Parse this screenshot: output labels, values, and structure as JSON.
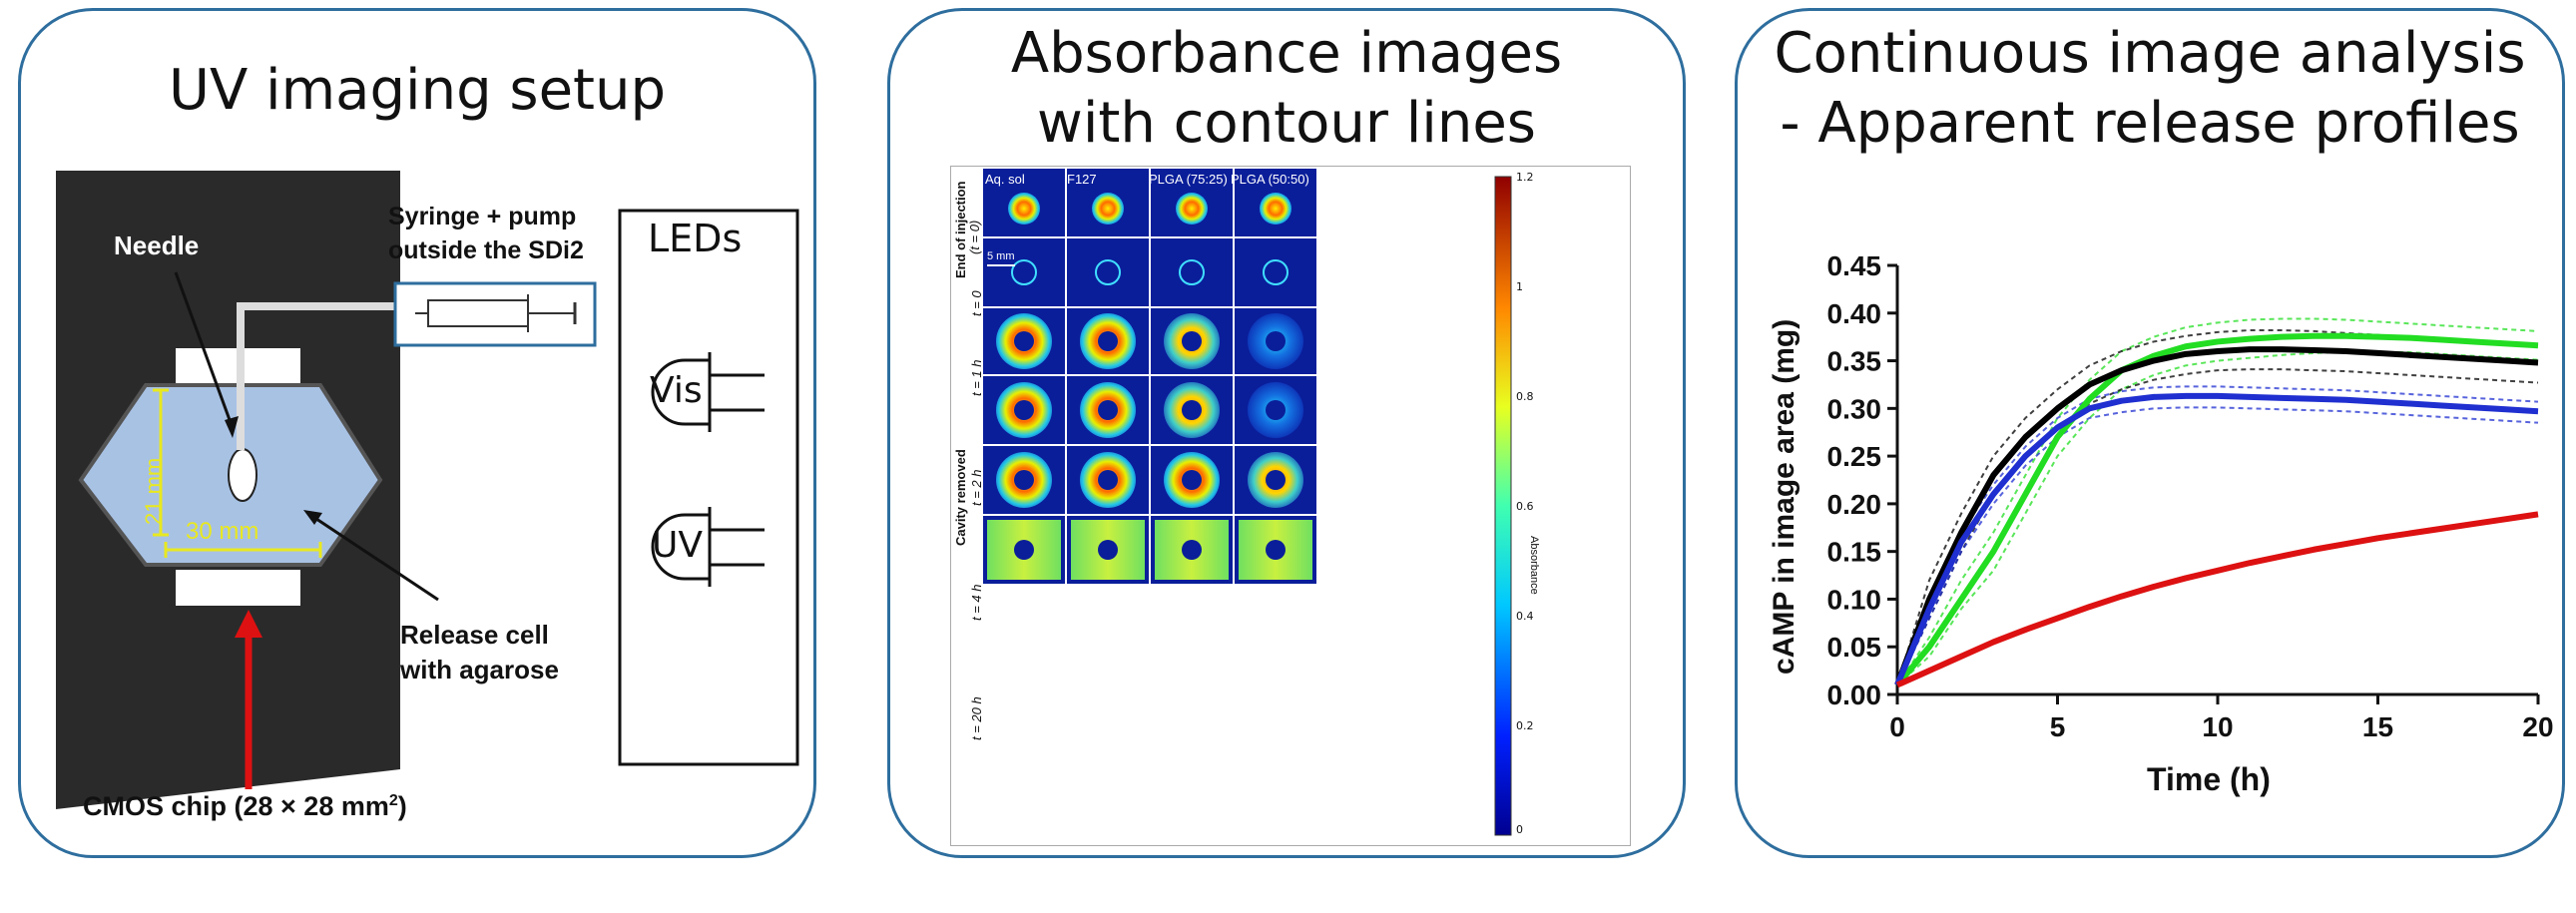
{
  "colors": {
    "panel_border": "#2e6e9e",
    "series_green": "#22dd22",
    "series_black": "#000000",
    "series_blue": "#1f2fd0",
    "series_red": "#dd1111",
    "cmos_arrow": "#dd1111"
  },
  "panel1": {
    "title": "UV imaging setup",
    "needle_label": "Needle",
    "syringe_label_1": "Syringe + pump",
    "syringe_label_2": "outside the SDi2",
    "leds_label": "LEDs",
    "vis_label": "Vis",
    "uv_label": "UV",
    "dim_21": "21 mm",
    "dim_30": "30 mm",
    "release_label_1": "Release cell",
    "release_label_2": "with agarose",
    "cmos_label": "CMOS chip (28 × 28 mm",
    "cmos_sup": "2",
    "cmos_close": ")"
  },
  "panel2": {
    "title_1": "Absorbance images",
    "title_2": "with contour lines",
    "columns": [
      "Aq. sol",
      "F127",
      "PLGA (75:25)",
      "PLGA (50:50)"
    ],
    "row_labels": [
      "t = 0",
      "t = 1 h",
      "t = 2 h",
      "t = 4 h",
      "t = 20 h"
    ],
    "group_end": "End of injection",
    "group_end_sub": "(t = 0)",
    "group_cavity": "Cavity removed",
    "scale_bar": "5 mm",
    "colorbar_label": "Absorbance",
    "colorbar_ticks": [
      "1.2",
      "1",
      "0.8",
      "0.6",
      "0.4",
      "0.2",
      "0"
    ]
  },
  "panel3": {
    "title_1": "Continuous image analysis",
    "title_2": "- Apparent release profiles"
  },
  "chart_data": {
    "type": "line",
    "title": "",
    "xlabel": "Time (h)",
    "ylabel": "cAMP in image area (mg)",
    "xlim": [
      0,
      20
    ],
    "ylim": [
      0,
      0.45
    ],
    "xticks": [
      "0",
      "5",
      "10",
      "15",
      "20"
    ],
    "yticks": [
      "0.00",
      "0.05",
      "0.10",
      "0.15",
      "0.20",
      "0.25",
      "0.30",
      "0.35",
      "0.40",
      "0.45"
    ],
    "x": [
      0,
      1,
      2,
      3,
      4,
      5,
      6,
      7,
      8,
      9,
      10,
      11,
      12,
      13,
      14,
      15,
      16,
      17,
      18,
      19,
      20
    ],
    "series": [
      {
        "name": "green",
        "color": "#22dd22",
        "values": [
          0.01,
          0.05,
          0.1,
          0.15,
          0.21,
          0.27,
          0.31,
          0.34,
          0.355,
          0.365,
          0.37,
          0.373,
          0.375,
          0.376,
          0.376,
          0.375,
          0.374,
          0.372,
          0.37,
          0.368,
          0.366
        ]
      },
      {
        "name": "black",
        "color": "#000000",
        "values": [
          0.01,
          0.1,
          0.17,
          0.23,
          0.27,
          0.3,
          0.325,
          0.34,
          0.35,
          0.357,
          0.36,
          0.362,
          0.362,
          0.361,
          0.36,
          0.358,
          0.356,
          0.354,
          0.352,
          0.35,
          0.348
        ]
      },
      {
        "name": "blue",
        "color": "#1f2fd0",
        "values": [
          0.01,
          0.09,
          0.16,
          0.21,
          0.25,
          0.28,
          0.3,
          0.308,
          0.312,
          0.313,
          0.313,
          0.312,
          0.311,
          0.31,
          0.309,
          0.307,
          0.305,
          0.303,
          0.301,
          0.299,
          0.297
        ]
      },
      {
        "name": "red",
        "color": "#dd1111",
        "values": [
          0.01,
          0.025,
          0.04,
          0.055,
          0.068,
          0.08,
          0.092,
          0.103,
          0.113,
          0.122,
          0.13,
          0.138,
          0.145,
          0.152,
          0.158,
          0.164,
          0.169,
          0.174,
          0.179,
          0.184,
          0.189
        ]
      }
    ],
    "bands": [
      {
        "name": "green",
        "upper": [
          0.01,
          0.06,
          0.12,
          0.17,
          0.23,
          0.29,
          0.33,
          0.36,
          0.375,
          0.385,
          0.39,
          0.393,
          0.394,
          0.394,
          0.393,
          0.391,
          0.389,
          0.387,
          0.385,
          0.383,
          0.381
        ],
        "lower": [
          0.01,
          0.04,
          0.09,
          0.13,
          0.19,
          0.25,
          0.29,
          0.32,
          0.335,
          0.345,
          0.35,
          0.353,
          0.356,
          0.358,
          0.359,
          0.359,
          0.359,
          0.357,
          0.355,
          0.353,
          0.351
        ]
      },
      {
        "name": "black",
        "upper": [
          0.01,
          0.12,
          0.19,
          0.25,
          0.29,
          0.32,
          0.345,
          0.36,
          0.37,
          0.376,
          0.38,
          0.382,
          0.382,
          0.381,
          0.379,
          0.377,
          0.374,
          0.372,
          0.37,
          0.368,
          0.366
        ],
        "lower": [
          0.01,
          0.08,
          0.15,
          0.21,
          0.25,
          0.28,
          0.305,
          0.32,
          0.33,
          0.336,
          0.34,
          0.341,
          0.341,
          0.34,
          0.339,
          0.337,
          0.335,
          0.333,
          0.331,
          0.329,
          0.327
        ]
      },
      {
        "name": "blue",
        "upper": [
          0.01,
          0.1,
          0.17,
          0.22,
          0.26,
          0.29,
          0.31,
          0.318,
          0.322,
          0.323,
          0.323,
          0.322,
          0.321,
          0.32,
          0.319,
          0.317,
          0.315,
          0.313,
          0.311,
          0.309,
          0.307
        ],
        "lower": [
          0.01,
          0.08,
          0.15,
          0.2,
          0.24,
          0.27,
          0.29,
          0.296,
          0.3,
          0.301,
          0.301,
          0.3,
          0.299,
          0.298,
          0.297,
          0.295,
          0.293,
          0.291,
          0.289,
          0.287,
          0.285
        ]
      }
    ]
  }
}
